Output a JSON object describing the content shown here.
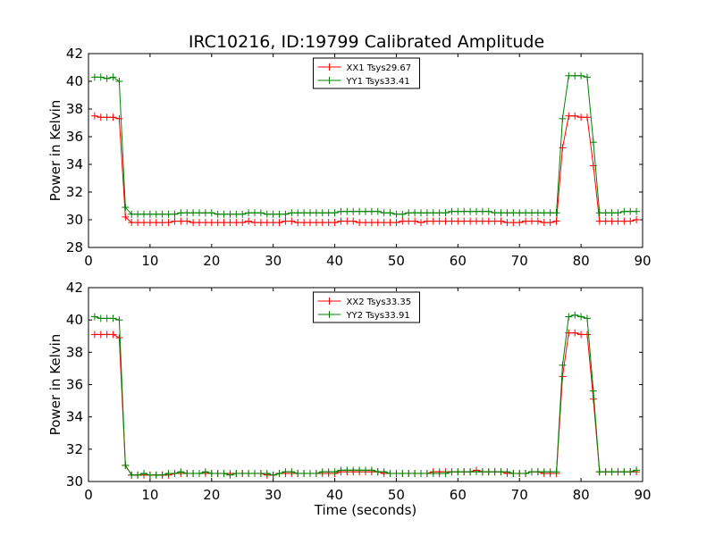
{
  "figure": {
    "title": "IRC10216, ID:19799 Calibrated Amplitude"
  },
  "chart_data": [
    {
      "type": "line",
      "ylabel": "Power in Kelvin",
      "xlabel": "",
      "xlim": [
        0,
        90
      ],
      "ylim": [
        28,
        42
      ],
      "xticks": [
        0,
        10,
        20,
        30,
        40,
        50,
        60,
        70,
        80,
        90
      ],
      "yticks": [
        28,
        30,
        32,
        34,
        36,
        38,
        40,
        42
      ],
      "grid": false,
      "legend_position": "top-center",
      "x": [
        1,
        2,
        3,
        4,
        5,
        6,
        7,
        8,
        9,
        10,
        11,
        12,
        13,
        14,
        15,
        16,
        17,
        18,
        19,
        20,
        21,
        22,
        23,
        24,
        25,
        26,
        27,
        28,
        29,
        30,
        31,
        32,
        33,
        34,
        35,
        36,
        37,
        38,
        39,
        40,
        41,
        42,
        43,
        44,
        45,
        46,
        47,
        48,
        49,
        50,
        51,
        52,
        53,
        54,
        55,
        56,
        57,
        58,
        59,
        60,
        61,
        62,
        63,
        64,
        65,
        66,
        67,
        68,
        69,
        70,
        71,
        72,
        73,
        74,
        75,
        76,
        77,
        78,
        79,
        80,
        81,
        82,
        83,
        84,
        85,
        86,
        87,
        88,
        89
      ],
      "series": [
        {
          "name": "XX1 Tsys29.67",
          "color": "#ff0000",
          "values": [
            37.5,
            37.4,
            37.4,
            37.4,
            37.3,
            30.2,
            29.8,
            29.8,
            29.8,
            29.8,
            29.8,
            29.8,
            29.8,
            29.9,
            29.9,
            29.9,
            29.8,
            29.8,
            29.8,
            29.8,
            29.8,
            29.8,
            29.8,
            29.8,
            29.8,
            29.9,
            29.8,
            29.8,
            29.8,
            29.8,
            29.8,
            29.9,
            29.9,
            29.8,
            29.8,
            29.8,
            29.8,
            29.8,
            29.8,
            29.8,
            29.9,
            29.9,
            29.9,
            29.8,
            29.8,
            29.8,
            29.8,
            29.8,
            29.8,
            29.8,
            29.9,
            29.9,
            29.9,
            29.8,
            29.9,
            29.9,
            29.9,
            29.9,
            29.9,
            29.9,
            29.9,
            29.9,
            29.9,
            29.9,
            29.9,
            29.9,
            29.9,
            29.8,
            29.8,
            29.8,
            29.9,
            29.9,
            29.9,
            29.8,
            29.8,
            29.9,
            35.2,
            37.5,
            37.5,
            37.4,
            37.4,
            33.9,
            29.9,
            29.9,
            29.9,
            29.9,
            29.9,
            29.9,
            30.0
          ]
        },
        {
          "name": "YY1 Tsys33.41",
          "color": "#008000",
          "values": [
            40.3,
            40.3,
            40.2,
            40.3,
            40.0,
            30.9,
            30.4,
            30.4,
            30.4,
            30.4,
            30.4,
            30.4,
            30.4,
            30.4,
            30.5,
            30.5,
            30.5,
            30.5,
            30.5,
            30.5,
            30.4,
            30.4,
            30.4,
            30.4,
            30.4,
            30.5,
            30.5,
            30.5,
            30.4,
            30.4,
            30.4,
            30.4,
            30.5,
            30.5,
            30.5,
            30.5,
            30.5,
            30.5,
            30.5,
            30.5,
            30.6,
            30.6,
            30.6,
            30.6,
            30.6,
            30.6,
            30.6,
            30.5,
            30.5,
            30.4,
            30.4,
            30.5,
            30.5,
            30.5,
            30.5,
            30.5,
            30.5,
            30.5,
            30.6,
            30.6,
            30.6,
            30.6,
            30.6,
            30.6,
            30.6,
            30.5,
            30.5,
            30.5,
            30.5,
            30.5,
            30.5,
            30.5,
            30.5,
            30.5,
            30.5,
            30.5,
            37.3,
            40.4,
            40.4,
            40.4,
            40.3,
            35.6,
            30.5,
            30.5,
            30.5,
            30.5,
            30.6,
            30.6,
            30.6
          ]
        }
      ]
    },
    {
      "type": "line",
      "ylabel": "Power in Kelvin",
      "xlabel": "Time (seconds)",
      "xlim": [
        0,
        90
      ],
      "ylim": [
        30,
        42
      ],
      "xticks": [
        0,
        10,
        20,
        30,
        40,
        50,
        60,
        70,
        80,
        90
      ],
      "yticks": [
        30,
        32,
        34,
        36,
        38,
        40,
        42
      ],
      "grid": false,
      "legend_position": "top-center",
      "x": [
        1,
        2,
        3,
        4,
        5,
        6,
        7,
        8,
        9,
        10,
        11,
        12,
        13,
        14,
        15,
        16,
        17,
        18,
        19,
        20,
        21,
        22,
        23,
        24,
        25,
        26,
        27,
        28,
        29,
        30,
        31,
        32,
        33,
        34,
        35,
        36,
        37,
        38,
        39,
        40,
        41,
        42,
        43,
        44,
        45,
        46,
        47,
        48,
        49,
        50,
        51,
        52,
        53,
        54,
        55,
        56,
        57,
        58,
        59,
        60,
        61,
        62,
        63,
        64,
        65,
        66,
        67,
        68,
        69,
        70,
        71,
        72,
        73,
        74,
        75,
        76,
        77,
        78,
        79,
        80,
        81,
        82,
        83,
        84,
        85,
        86,
        87,
        88,
        89
      ],
      "series": [
        {
          "name": "XX2 Tsys33.35",
          "color": "#ff0000",
          "values": [
            39.1,
            39.1,
            39.1,
            39.1,
            38.9,
            31.0,
            30.4,
            30.4,
            30.4,
            30.4,
            30.4,
            30.4,
            30.4,
            30.5,
            30.5,
            30.5,
            30.5,
            30.5,
            30.5,
            30.5,
            30.5,
            30.5,
            30.5,
            30.5,
            30.5,
            30.5,
            30.5,
            30.5,
            30.4,
            30.4,
            30.5,
            30.5,
            30.5,
            30.5,
            30.5,
            30.5,
            30.5,
            30.5,
            30.5,
            30.5,
            30.6,
            30.6,
            30.6,
            30.6,
            30.6,
            30.6,
            30.6,
            30.5,
            30.5,
            30.5,
            30.5,
            30.5,
            30.5,
            30.5,
            30.5,
            30.6,
            30.6,
            30.6,
            30.6,
            30.6,
            30.6,
            30.6,
            30.7,
            30.6,
            30.6,
            30.6,
            30.6,
            30.5,
            30.5,
            30.5,
            30.5,
            30.6,
            30.6,
            30.5,
            30.5,
            30.5,
            36.5,
            39.2,
            39.2,
            39.1,
            39.1,
            35.1,
            30.6,
            30.6,
            30.6,
            30.6,
            30.6,
            30.6,
            30.6
          ]
        },
        {
          "name": "YY2 Tsys33.91",
          "color": "#008000",
          "values": [
            40.2,
            40.1,
            40.1,
            40.1,
            40.0,
            31.0,
            30.4,
            30.4,
            30.5,
            30.4,
            30.4,
            30.4,
            30.5,
            30.5,
            30.6,
            30.5,
            30.5,
            30.5,
            30.6,
            30.5,
            30.5,
            30.5,
            30.4,
            30.5,
            30.5,
            30.5,
            30.5,
            30.5,
            30.5,
            30.4,
            30.5,
            30.6,
            30.6,
            30.5,
            30.5,
            30.5,
            30.5,
            30.6,
            30.6,
            30.6,
            30.7,
            30.7,
            30.7,
            30.7,
            30.7,
            30.7,
            30.6,
            30.6,
            30.5,
            30.5,
            30.5,
            30.5,
            30.5,
            30.5,
            30.5,
            30.5,
            30.5,
            30.5,
            30.6,
            30.6,
            30.6,
            30.6,
            30.6,
            30.6,
            30.6,
            30.6,
            30.6,
            30.6,
            30.5,
            30.5,
            30.5,
            30.6,
            30.6,
            30.6,
            30.6,
            30.6,
            37.2,
            40.2,
            40.3,
            40.2,
            40.1,
            35.6,
            30.6,
            30.6,
            30.6,
            30.6,
            30.6,
            30.6,
            30.7
          ]
        }
      ]
    }
  ]
}
